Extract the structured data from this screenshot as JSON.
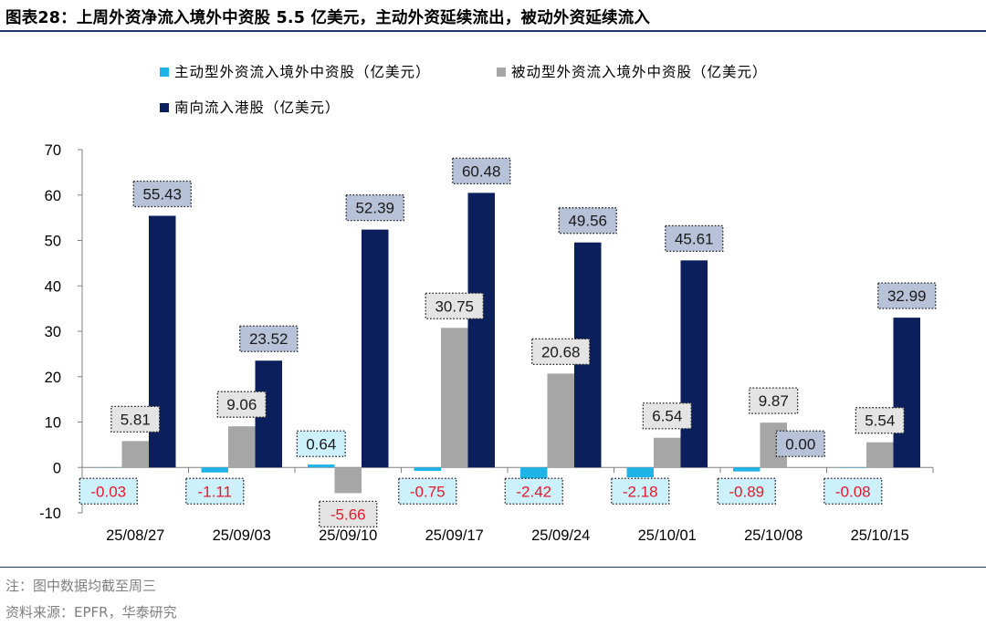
{
  "title": "图表28：上周外资净流入境外中资股 5.5 亿美元，主动外资延续流出，被动外资延续流入",
  "notes": {
    "note": "注：图中数据均截至周三",
    "source": "资料来源：EPFR，华泰研究"
  },
  "chart_data": {
    "type": "bar",
    "categories": [
      "25/08/27",
      "25/09/03",
      "25/09/10",
      "25/09/17",
      "25/09/24",
      "25/10/01",
      "25/10/08",
      "25/10/15"
    ],
    "series": [
      {
        "name": "主动型外资流入境外中资股（亿美元）",
        "color": "#1fb4e8",
        "values": [
          -0.03,
          -1.11,
          0.64,
          -0.75,
          -2.42,
          -2.18,
          -0.89,
          -0.08
        ]
      },
      {
        "name": "被动型外资流入境外中资股（亿美元）",
        "color": "#a6a6a6",
        "values": [
          5.81,
          9.06,
          -5.66,
          30.75,
          20.68,
          6.54,
          9.87,
          5.54
        ]
      },
      {
        "name": "南向流入港股（亿美元）",
        "color": "#0b1f5c",
        "values": [
          55.43,
          23.52,
          52.39,
          60.48,
          49.56,
          45.61,
          0.0,
          32.99
        ]
      }
    ],
    "data_labels": [
      [
        "-0.03",
        "-1.11",
        "0.64",
        "-0.75",
        "-2.42",
        "-2.18",
        "-0.89",
        "-0.08"
      ],
      [
        "5.81",
        "9.06",
        "-5.66",
        "30.75",
        "20.68",
        "6.54",
        "9.87",
        "5.54"
      ],
      [
        "55.43",
        "23.52",
        "52.39",
        "60.48",
        "49.56",
        "45.61",
        "0.00",
        "32.99"
      ]
    ],
    "yticks": [
      "70",
      "60",
      "50",
      "40",
      "30",
      "20",
      "10",
      "0",
      "-10"
    ],
    "ylim": [
      -10,
      70
    ],
    "grid": false,
    "legend_position": "top"
  }
}
